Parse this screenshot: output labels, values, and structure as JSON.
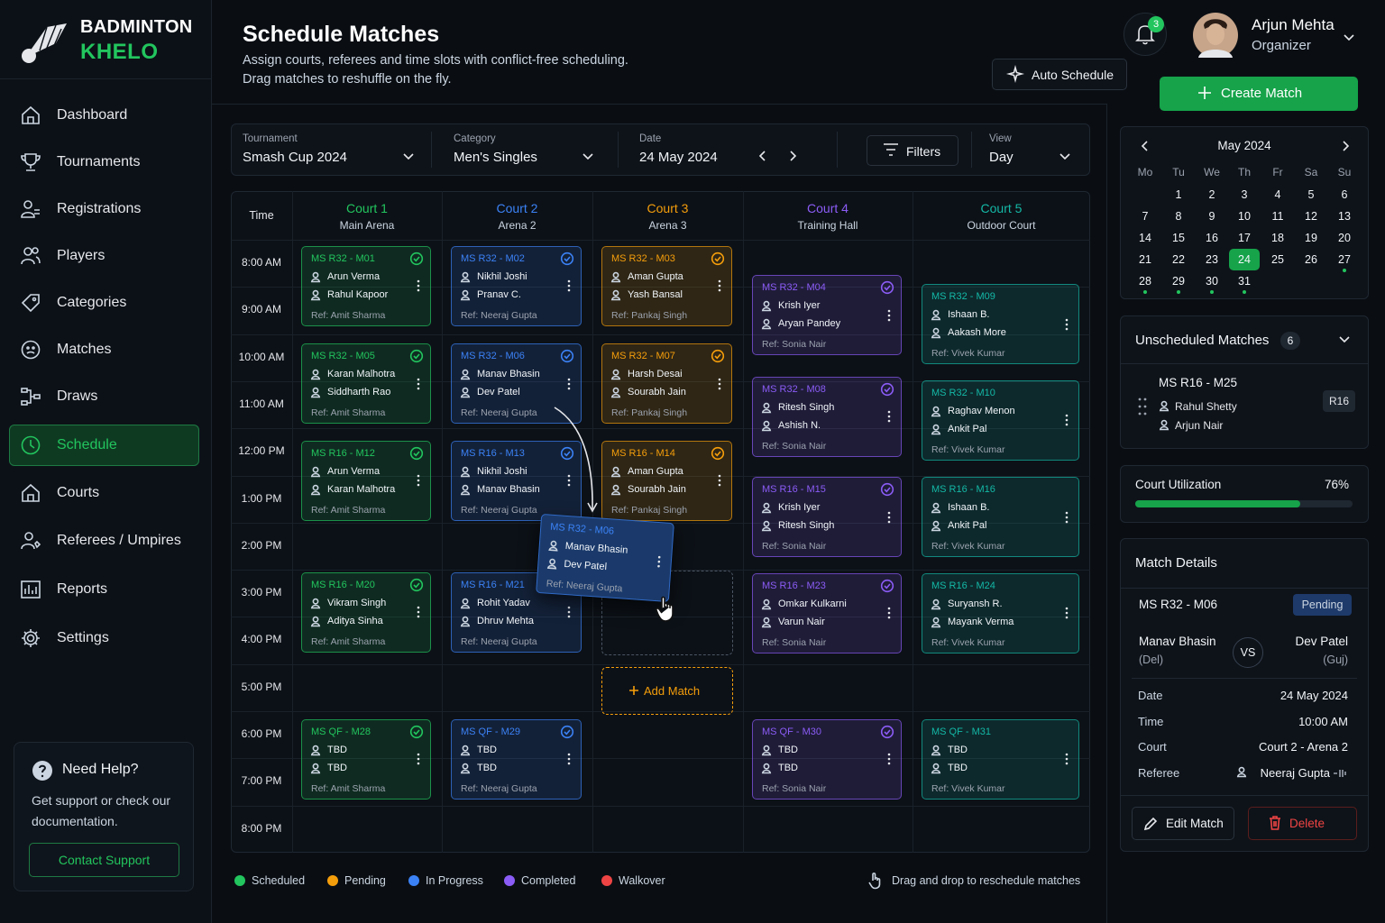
{
  "brand": {
    "line1": "BADMINTON",
    "line2": "KHELO"
  },
  "nav": [
    {
      "label": "Dashboard"
    },
    {
      "label": "Tournaments"
    },
    {
      "label": "Registrations"
    },
    {
      "label": "Players"
    },
    {
      "label": "Categories"
    },
    {
      "label": "Matches"
    },
    {
      "label": "Draws"
    },
    {
      "label": "Schedule",
      "active": true
    },
    {
      "label": "Courts"
    },
    {
      "label": "Referees / Umpires"
    },
    {
      "label": "Reports"
    },
    {
      "label": "Settings"
    }
  ],
  "help": {
    "title": "Need Help?",
    "text": "Get support or check our documentation.",
    "button": "Contact Support"
  },
  "header": {
    "title": "Schedule Matches",
    "subtitle": [
      "Assign courts, referees and time slots with conflict-free scheduling.",
      "Drag matches to reshuffle on the fly."
    ],
    "auto_schedule": "Auto Schedule",
    "create_match": "Create Match",
    "notifications": 3,
    "user": {
      "name": "Arjun Mehta",
      "role": "Organizer"
    }
  },
  "filters": {
    "items": [
      {
        "label": "Tournament",
        "value": "Smash Cup 2024"
      },
      {
        "label": "Category",
        "value": "Men's Singles"
      },
      {
        "label": "Date",
        "value": "24 May 2024"
      },
      {
        "label": "View",
        "value": "Day"
      }
    ],
    "button": "Filters"
  },
  "grid": {
    "time_header": "Time",
    "times": [
      "8:00 AM",
      "9:00 AM",
      "10:00 AM",
      "11:00 AM",
      "12:00 PM",
      "1:00 PM",
      "2:00 PM",
      "3:00 PM",
      "4:00 PM",
      "5:00 PM",
      "6:00 PM",
      "7:00 PM",
      "8:00 PM"
    ],
    "courts": [
      {
        "name": "Court 1",
        "venue": "Main Arena",
        "color": "#22c55e",
        "matches": [
          {
            "id": "MS R32 - M01",
            "players": [
              "Arun Verma",
              "Rahul Kapoor"
            ],
            "referee": "Ref: Amit Sharma"
          },
          {
            "id": "MS R32 - M05",
            "players": [
              "Karan Malhotra",
              "Siddharth Rao"
            ],
            "referee": "Ref: Amit Sharma"
          },
          {
            "id": "MS R16 - M12",
            "players": [
              "Arun Verma",
              "Karan Malhotra"
            ],
            "referee": "Ref: Amit Sharma"
          },
          {
            "id": "MS R16 - M20",
            "players": [
              "Vikram Singh",
              "Aditya Sinha"
            ],
            "referee": "Ref: Amit Sharma"
          },
          {
            "id": "MS QF - M28",
            "players": [
              "TBD",
              "TBD"
            ],
            "referee": "Ref: Amit Sharma"
          }
        ]
      },
      {
        "name": "Court 2",
        "venue": "Arena 2",
        "color": "#3b82f6",
        "matches": [
          {
            "id": "MS R32 - M02",
            "players": [
              "Nikhil Joshi",
              "Pranav C."
            ],
            "referee": "Ref: Neeraj Gupta"
          },
          {
            "id": "MS R32 - M06",
            "players": [
              "Manav Bhasin",
              "Dev Patel"
            ],
            "referee": "Ref: Neeraj Gupta"
          },
          {
            "id": "MS R16 - M13",
            "players": [
              "Nikhil Joshi",
              "Manav Bhasin"
            ],
            "referee": "Ref: Neeraj Gupta"
          },
          {
            "id": "MS R16 - M21",
            "players": [
              "Rohit Yadav",
              "Dhruv Mehta"
            ],
            "referee": "Ref: Neeraj Gupta"
          },
          {
            "id": "MS QF - M29",
            "players": [
              "TBD",
              "TBD"
            ],
            "referee": "Ref: Neeraj Gupta"
          }
        ]
      },
      {
        "name": "Court 3",
        "venue": "Arena 3",
        "color": "#f59e0b",
        "matches": [
          {
            "id": "MS R32 - M03",
            "players": [
              "Aman Gupta",
              "Yash Bansal"
            ],
            "referee": "Ref: Pankaj Singh"
          },
          {
            "id": "MS R32 - M07",
            "players": [
              "Harsh Desai",
              "Sourabh Jain"
            ],
            "referee": "Ref: Pankaj Singh"
          },
          {
            "id": "MS R16 - M14",
            "players": [
              "Aman Gupta",
              "Sourabh Jain"
            ],
            "referee": "Ref: Pankaj Singh"
          }
        ]
      },
      {
        "name": "Court 4",
        "venue": "Training Hall",
        "color": "#8b5cf6",
        "matches": [
          {
            "id": "MS R32 - M04",
            "players": [
              "Krish Iyer",
              "Aryan Pandey"
            ],
            "referee": "Ref: Sonia Nair"
          },
          {
            "id": "MS R32 - M08",
            "players": [
              "Ritesh Singh",
              "Ashish N."
            ],
            "referee": "Ref: Sonia Nair"
          },
          {
            "id": "MS R16 - M15",
            "players": [
              "Krish Iyer",
              "Ritesh Singh"
            ],
            "referee": "Ref: Sonia Nair"
          },
          {
            "id": "MS R16 - M23",
            "players": [
              "Omkar Kulkarni",
              "Varun Nair"
            ],
            "referee": "Ref: Sonia Nair"
          },
          {
            "id": "MS QF - M30",
            "players": [
              "TBD",
              "TBD"
            ],
            "referee": "Ref: Sonia Nair"
          }
        ]
      },
      {
        "name": "Court 5",
        "venue": "Outdoor Court",
        "color": "#14b8a6",
        "matches": [
          {
            "id": "MS R32 - M09",
            "players": [
              "Ishaan B.",
              "Aakash More"
            ],
            "referee": "Ref: Vivek Kumar"
          },
          {
            "id": "MS R32 - M10",
            "players": [
              "Raghav Menon",
              "Ankit Pal"
            ],
            "referee": "Ref: Vivek Kumar"
          },
          {
            "id": "MS R16 - M16",
            "players": [
              "Ishaan B.",
              "Ankit Pal"
            ],
            "referee": "Ref: Vivek Kumar"
          },
          {
            "id": "MS R16 - M24",
            "players": [
              "Suryansh R.",
              "Mayank Verma"
            ],
            "referee": "Ref: Vivek Kumar"
          },
          {
            "id": "MS QF - M31",
            "players": [
              "TBD",
              "TBD"
            ],
            "referee": "Ref: Vivek Kumar"
          }
        ]
      }
    ],
    "dragging": {
      "id": "MS R32 - M06",
      "players": [
        "Manav Bhasin",
        "Dev Patel"
      ],
      "referee": "Ref: Neeraj Gupta"
    },
    "add_match": "Add Match"
  },
  "legend": {
    "items": [
      {
        "name": "Scheduled",
        "color": "#22c55e"
      },
      {
        "name": "Pending",
        "color": "#f59e0b"
      },
      {
        "name": "In Progress",
        "color": "#3b82f6"
      },
      {
        "name": "Completed",
        "color": "#8b5cf6"
      },
      {
        "name": "Walkover",
        "color": "#ef4444"
      }
    ],
    "hint": "Drag and drop to reschedule matches"
  },
  "calendar": {
    "month": "May 2024",
    "weekdays": [
      "Mo",
      "Tu",
      "We",
      "Th",
      "Fr",
      "Sa",
      "Su"
    ],
    "days": [
      1,
      2,
      3,
      4,
      5,
      6,
      7,
      8,
      9,
      10,
      11,
      12,
      13,
      14,
      15,
      16,
      17,
      18,
      19,
      20,
      21,
      22,
      23,
      24,
      25,
      26,
      27,
      28,
      29,
      30,
      31
    ],
    "selected": 24,
    "marked": [
      27,
      28,
      29,
      30,
      31
    ]
  },
  "unscheduled": {
    "title": "Unscheduled Matches",
    "count": 6,
    "items": [
      {
        "id": "MS R16 - M25",
        "players": [
          "Rahul Shetty",
          "Arjun Nair"
        ],
        "round": "R16"
      }
    ]
  },
  "utilization": {
    "label": "Court Utilization",
    "value": 76,
    "value_label": "76%"
  },
  "details": {
    "title": "Match Details",
    "id": "MS R32 - M06",
    "status": "Pending",
    "player1": {
      "name": "Manav Bhasin",
      "team": "(Del)"
    },
    "vs": "VS",
    "player2": {
      "name": "Dev Patel",
      "team": "(Guj)"
    },
    "rows": [
      {
        "label": "Date",
        "value": "24 May 2024"
      },
      {
        "label": "Time",
        "value": "10:00 AM"
      },
      {
        "label": "Court",
        "value": "Court 2 - Arena 2"
      },
      {
        "label": "Referee",
        "value": "Neeraj Gupta"
      }
    ],
    "edit": "Edit Match",
    "delete": "Delete"
  }
}
